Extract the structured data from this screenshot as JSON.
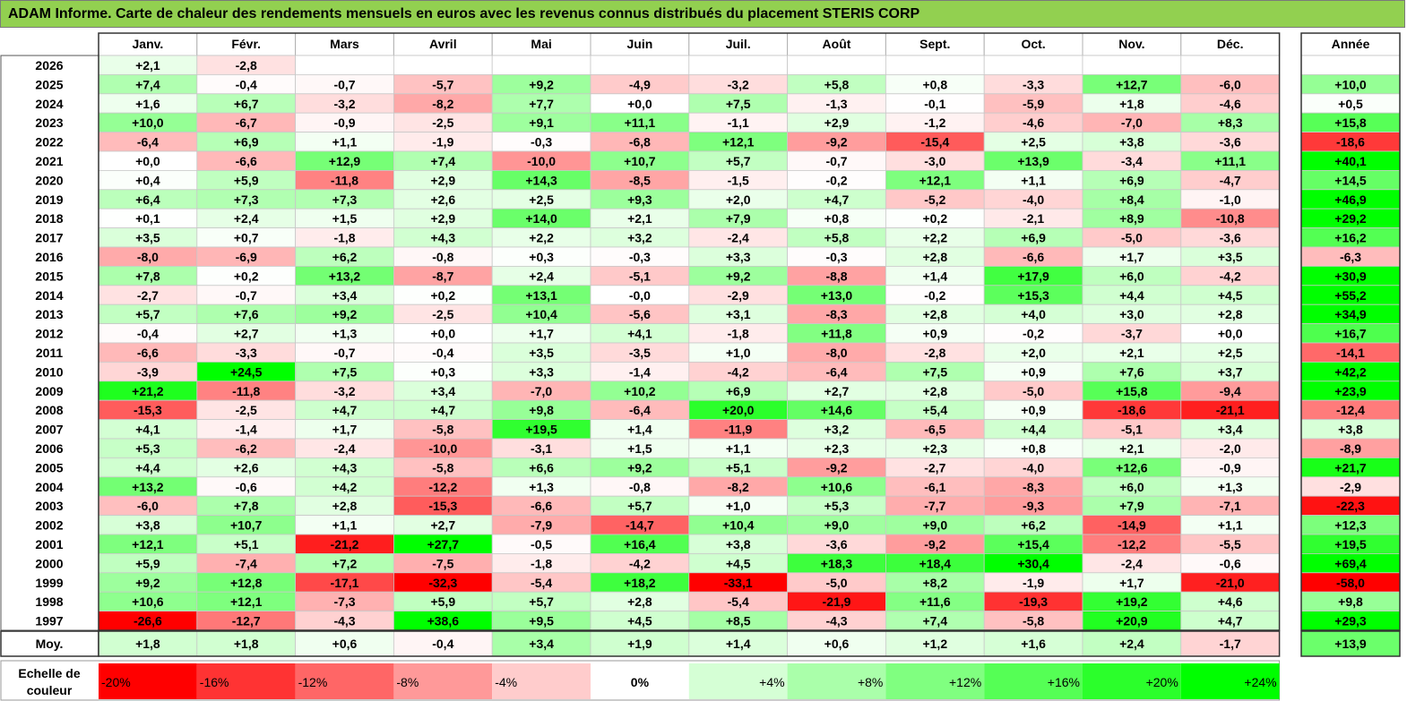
{
  "title": "ADAM Informe. Carte de chaleur des rendements mensuels en euros avec les revenus connus distribués du placement STERIS CORP",
  "colors": {
    "title_bg": "#92d050",
    "max_green": "#00ff00",
    "max_red": "#ff0000",
    "neutral": "#ffffff"
  },
  "chart_data": {
    "type": "heatmap",
    "title": "ADAM Informe. Carte de chaleur des rendements mensuels en euros avec les revenus connus distribués du placement STERIS CORP",
    "columns": [
      "Janv.",
      "Févr.",
      "Mars",
      "Avril",
      "Mai",
      "Juin",
      "Juil.",
      "Août",
      "Sept.",
      "Oct.",
      "Nov.",
      "Déc."
    ],
    "year_column_label": "Année",
    "average_row_label": "Moy.",
    "rows": [
      {
        "year": "2026",
        "values": [
          "+2,1",
          "-2,8",
          "",
          "",
          "",
          "",
          "",
          "",
          "",
          "",
          "",
          ""
        ],
        "total": ""
      },
      {
        "year": "2025",
        "values": [
          "+7,4",
          "-0,4",
          "-0,7",
          "-5,7",
          "+9,2",
          "-4,9",
          "-3,2",
          "+5,8",
          "+0,8",
          "-3,3",
          "+12,7",
          "-6,0"
        ],
        "total": "+10,0"
      },
      {
        "year": "2024",
        "values": [
          "+1,6",
          "+6,7",
          "-3,2",
          "-8,2",
          "+7,7",
          "+0,0",
          "+7,5",
          "-1,3",
          "-0,1",
          "-5,9",
          "+1,8",
          "-4,6"
        ],
        "total": "+0,5"
      },
      {
        "year": "2023",
        "values": [
          "+10,0",
          "-6,7",
          "-0,9",
          "-2,5",
          "+9,1",
          "+11,1",
          "-1,1",
          "+2,9",
          "-1,2",
          "-4,6",
          "-7,0",
          "+8,3"
        ],
        "total": "+15,8"
      },
      {
        "year": "2022",
        "values": [
          "-6,4",
          "+6,9",
          "+1,1",
          "-1,9",
          "-0,3",
          "-6,8",
          "+12,1",
          "-9,2",
          "-15,4",
          "+2,5",
          "+3,8",
          "-3,6"
        ],
        "total": "-18,6"
      },
      {
        "year": "2021",
        "values": [
          "+0,0",
          "-6,6",
          "+12,9",
          "+7,4",
          "-10,0",
          "+10,7",
          "+5,7",
          "-0,7",
          "-3,0",
          "+13,9",
          "-3,4",
          "+11,1"
        ],
        "total": "+40,1"
      },
      {
        "year": "2020",
        "values": [
          "+0,4",
          "+5,9",
          "-11,8",
          "+2,9",
          "+14,3",
          "-8,5",
          "-1,5",
          "-0,2",
          "+12,1",
          "+1,1",
          "+6,9",
          "-4,7"
        ],
        "total": "+14,5"
      },
      {
        "year": "2019",
        "values": [
          "+6,4",
          "+7,3",
          "+7,3",
          "+2,6",
          "+2,5",
          "+9,3",
          "+2,0",
          "+4,7",
          "-5,2",
          "-4,0",
          "+8,4",
          "-1,0"
        ],
        "total": "+46,9"
      },
      {
        "year": "2018",
        "values": [
          "+0,1",
          "+2,4",
          "+1,5",
          "+2,9",
          "+14,0",
          "+2,1",
          "+7,9",
          "+0,8",
          "+0,2",
          "-2,1",
          "+8,9",
          "-10,8"
        ],
        "total": "+29,2"
      },
      {
        "year": "2017",
        "values": [
          "+3,5",
          "+0,7",
          "-1,8",
          "+4,3",
          "+2,2",
          "+3,2",
          "-2,4",
          "+5,8",
          "+2,2",
          "+6,9",
          "-5,0",
          "-3,6"
        ],
        "total": "+16,2"
      },
      {
        "year": "2016",
        "values": [
          "-8,0",
          "-6,9",
          "+6,2",
          "-0,8",
          "+0,3",
          "-0,3",
          "+3,3",
          "-0,3",
          "+2,8",
          "-6,6",
          "+1,7",
          "+3,5"
        ],
        "total": "-6,3"
      },
      {
        "year": "2015",
        "values": [
          "+7,8",
          "+0,2",
          "+13,2",
          "-8,7",
          "+2,4",
          "-5,1",
          "+9,2",
          "-8,8",
          "+1,4",
          "+17,9",
          "+6,0",
          "-4,2"
        ],
        "total": "+30,9"
      },
      {
        "year": "2014",
        "values": [
          "-2,7",
          "-0,7",
          "+3,4",
          "+0,2",
          "+13,1",
          "-0,0",
          "-2,9",
          "+13,0",
          "-0,2",
          "+15,3",
          "+4,4",
          "+4,5"
        ],
        "total": "+55,2"
      },
      {
        "year": "2013",
        "values": [
          "+5,7",
          "+7,6",
          "+9,2",
          "-2,5",
          "+10,4",
          "-5,6",
          "+3,1",
          "-8,3",
          "+2,8",
          "+4,0",
          "+3,0",
          "+2,8"
        ],
        "total": "+34,9"
      },
      {
        "year": "2012",
        "values": [
          "-0,4",
          "+2,7",
          "+1,3",
          "+0,0",
          "+1,7",
          "+4,1",
          "-1,8",
          "+11,8",
          "+0,9",
          "-0,2",
          "-3,7",
          "+0,0"
        ],
        "total": "+16,7"
      },
      {
        "year": "2011",
        "values": [
          "-6,6",
          "-3,3",
          "-0,7",
          "-0,4",
          "+3,5",
          "-3,5",
          "+1,0",
          "-8,0",
          "-2,8",
          "+2,0",
          "+2,1",
          "+2,5"
        ],
        "total": "-14,1"
      },
      {
        "year": "2010",
        "values": [
          "-3,9",
          "+24,5",
          "+7,5",
          "+0,3",
          "+3,3",
          "-1,4",
          "-4,2",
          "-6,4",
          "+7,5",
          "+0,9",
          "+7,6",
          "+3,7"
        ],
        "total": "+42,2"
      },
      {
        "year": "2009",
        "values": [
          "+21,2",
          "-11,8",
          "-3,2",
          "+3,4",
          "-7,0",
          "+10,2",
          "+6,9",
          "+2,7",
          "+2,8",
          "-5,0",
          "+15,8",
          "-9,4"
        ],
        "total": "+23,9"
      },
      {
        "year": "2008",
        "values": [
          "-15,3",
          "-2,5",
          "+4,7",
          "+4,7",
          "+9,8",
          "-6,4",
          "+20,0",
          "+14,6",
          "+5,4",
          "+0,9",
          "-18,6",
          "-21,1"
        ],
        "total": "-12,4"
      },
      {
        "year": "2007",
        "values": [
          "+4,1",
          "-1,4",
          "+1,7",
          "-5,8",
          "+19,5",
          "+1,4",
          "-11,9",
          "+3,2",
          "-6,5",
          "+4,4",
          "-5,1",
          "+3,4"
        ],
        "total": "+3,8"
      },
      {
        "year": "2006",
        "values": [
          "+5,3",
          "-6,2",
          "-2,4",
          "-10,0",
          "-3,1",
          "+1,5",
          "+1,1",
          "+2,3",
          "+2,3",
          "+0,8",
          "+2,1",
          "-2,0"
        ],
        "total": "-8,9"
      },
      {
        "year": "2005",
        "values": [
          "+4,4",
          "+2,6",
          "+4,3",
          "-5,8",
          "+6,6",
          "+9,2",
          "+5,1",
          "-9,2",
          "-2,7",
          "-4,0",
          "+12,6",
          "-0,9"
        ],
        "total": "+21,7"
      },
      {
        "year": "2004",
        "values": [
          "+13,2",
          "-0,6",
          "+4,2",
          "-12,2",
          "+1,3",
          "-0,8",
          "-8,2",
          "+10,6",
          "-6,1",
          "-8,3",
          "+6,0",
          "+1,3"
        ],
        "total": "-2,9"
      },
      {
        "year": "2003",
        "values": [
          "-6,0",
          "+7,8",
          "+2,8",
          "-15,3",
          "-6,6",
          "+5,7",
          "+1,0",
          "+5,3",
          "-7,7",
          "-9,3",
          "+7,9",
          "-7,1"
        ],
        "total": "-22,3"
      },
      {
        "year": "2002",
        "values": [
          "+3,8",
          "+10,7",
          "+1,1",
          "+2,7",
          "-7,9",
          "-14,7",
          "+10,4",
          "+9,0",
          "+9,0",
          "+6,2",
          "-14,9",
          "+1,1"
        ],
        "total": "+12,3"
      },
      {
        "year": "2001",
        "values": [
          "+12,1",
          "+5,1",
          "-21,2",
          "+27,7",
          "-0,5",
          "+16,4",
          "+3,8",
          "-3,6",
          "-9,2",
          "+15,4",
          "-12,2",
          "-5,5"
        ],
        "total": "+19,5"
      },
      {
        "year": "2000",
        "values": [
          "+5,9",
          "-7,4",
          "+7,2",
          "-7,5",
          "-1,8",
          "-4,2",
          "+4,5",
          "+18,3",
          "+18,4",
          "+30,4",
          "-2,4",
          "-0,6"
        ],
        "total": "+69,4"
      },
      {
        "year": "1999",
        "values": [
          "+9,2",
          "+12,8",
          "-17,1",
          "-32,3",
          "-5,4",
          "+18,2",
          "-33,1",
          "-5,0",
          "+8,2",
          "-1,9",
          "+1,7",
          "-21,0"
        ],
        "total": "-58,0"
      },
      {
        "year": "1998",
        "values": [
          "+10,6",
          "+12,1",
          "-7,3",
          "+5,9",
          "+5,7",
          "+2,8",
          "-5,4",
          "-21,9",
          "+11,6",
          "-19,3",
          "+19,2",
          "+4,6"
        ],
        "total": "+9,8"
      },
      {
        "year": "1997",
        "values": [
          "-26,6",
          "-12,7",
          "-4,3",
          "+38,6",
          "+9,5",
          "+4,5",
          "+8,5",
          "-4,3",
          "+7,4",
          "-5,8",
          "+20,9",
          "+4,7"
        ],
        "total": "+29,3"
      }
    ],
    "averages": {
      "values": [
        "+1,8",
        "+1,8",
        "+0,6",
        "-0,4",
        "+3,4",
        "+1,9",
        "+1,4",
        "+0,6",
        "+1,2",
        "+1,6",
        "+2,4",
        "-1,7"
      ],
      "total": "+13,9"
    },
    "scale_label": [
      "Echelle de",
      "couleur"
    ],
    "scale": [
      {
        "label": "-20%",
        "value": -20
      },
      {
        "label": "-16%",
        "value": -16
      },
      {
        "label": "-12%",
        "value": -12
      },
      {
        "label": "-8%",
        "value": -8
      },
      {
        "label": "-4%",
        "value": -4
      },
      {
        "label": "0%",
        "value": 0
      },
      {
        "label": "+4%",
        "value": 4
      },
      {
        "label": "+8%",
        "value": 8
      },
      {
        "label": "+12%",
        "value": 12
      },
      {
        "label": "+16%",
        "value": 16
      },
      {
        "label": "+20%",
        "value": 20
      },
      {
        "label": "+24%",
        "value": 24
      }
    ]
  }
}
